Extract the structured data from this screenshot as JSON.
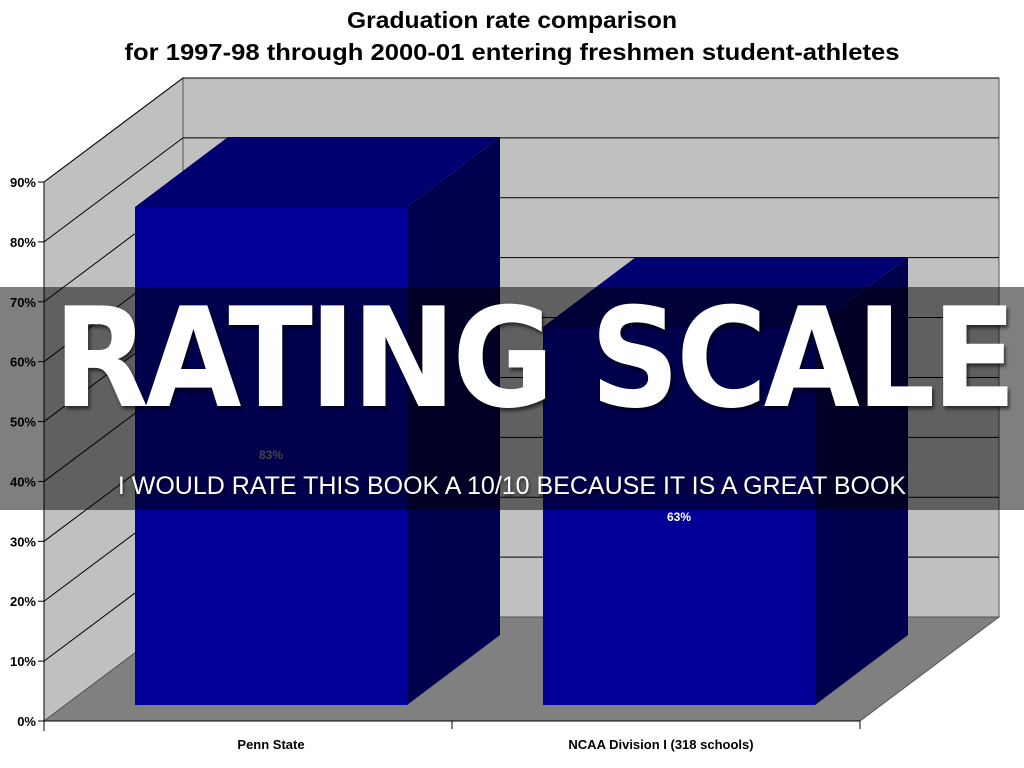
{
  "chart_data": {
    "type": "bar",
    "title": [
      "Graduation rate comparison",
      "for 1997-98 through 2000-01 entering freshmen student-athletes"
    ],
    "categories": [
      "Penn State",
      "NCAA Division I (318 schools)"
    ],
    "values": [
      83,
      63
    ],
    "data_labels": [
      "83%",
      "63%"
    ],
    "ylim": [
      0,
      90
    ],
    "yticks": [
      "0%",
      "10%",
      "20%",
      "30%",
      "40%",
      "50%",
      "60%",
      "70%",
      "80%",
      "90%"
    ],
    "xlabel": "",
    "ylabel": "",
    "grid": true,
    "style": "3d-column",
    "colors": {
      "bar_front": "#000099",
      "bar_top": "#000070",
      "bar_side": "#00004e",
      "wall": "#c0c0c0",
      "floor": "#808080"
    }
  },
  "overlay": {
    "headline": "RATING SCALE",
    "subline": "I WOULD RATE THIS BOOK A 10/10 BECAUSE IT IS A GREAT BOOK"
  }
}
